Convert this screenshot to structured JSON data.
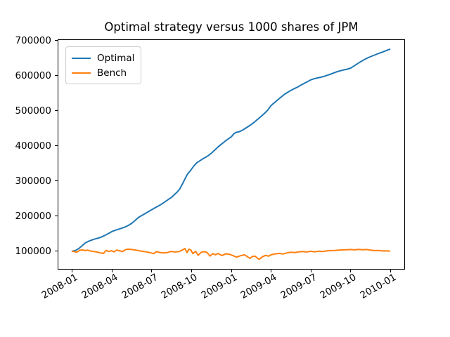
{
  "figure": {
    "title": "Optimal strategy versus 1000 shares of JPM",
    "background": "#ffffff",
    "text_color": "#000000"
  },
  "legend": {
    "position": "upper-left",
    "entries": [
      {
        "label": "Optimal",
        "color": "#1f77b4"
      },
      {
        "label": "Bench",
        "color": "#ff7f0e"
      }
    ]
  },
  "chart_data": {
    "type": "line",
    "title": "Optimal strategy versus 1000 shares of JPM",
    "xlabel": "",
    "ylabel": "",
    "grid": false,
    "legend_position": "upper-left",
    "x_unit": "months since 2008-01",
    "xlim": [
      -1.05,
      25.05
    ],
    "ylim": [
      49900,
      701400
    ],
    "xticks": [
      {
        "label": "2008-01",
        "value": 0
      },
      {
        "label": "2008-04",
        "value": 3
      },
      {
        "label": "2008-07",
        "value": 6
      },
      {
        "label": "2008-10",
        "value": 9
      },
      {
        "label": "2009-01",
        "value": 12
      },
      {
        "label": "2009-04",
        "value": 15
      },
      {
        "label": "2009-07",
        "value": 18
      },
      {
        "label": "2009-10",
        "value": 21
      },
      {
        "label": "2010-01",
        "value": 24
      }
    ],
    "yticks": [
      {
        "label": "100000",
        "value": 100000
      },
      {
        "label": "200000",
        "value": 200000
      },
      {
        "label": "300000",
        "value": 300000
      },
      {
        "label": "400000",
        "value": 400000
      },
      {
        "label": "500000",
        "value": 500000
      },
      {
        "label": "600000",
        "value": 600000
      },
      {
        "label": "700000",
        "value": 700000
      }
    ],
    "series": [
      {
        "name": "Optimal",
        "color": "#1f77b4",
        "points": [
          [
            0,
            100000
          ],
          [
            0.25,
            102500
          ],
          [
            0.5,
            108000
          ],
          [
            0.75,
            116000
          ],
          [
            1.0,
            124000
          ],
          [
            1.25,
            129000
          ],
          [
            1.5,
            132500
          ],
          [
            1.75,
            135500
          ],
          [
            2.0,
            138000
          ],
          [
            2.25,
            141500
          ],
          [
            2.5,
            146000
          ],
          [
            2.75,
            151000
          ],
          [
            3.0,
            156500
          ],
          [
            3.25,
            160000
          ],
          [
            3.5,
            163000
          ],
          [
            3.75,
            166000
          ],
          [
            4.0,
            169500
          ],
          [
            4.25,
            174000
          ],
          [
            4.5,
            180000
          ],
          [
            4.75,
            188000
          ],
          [
            5.0,
            196500
          ],
          [
            5.25,
            202000
          ],
          [
            5.5,
            207500
          ],
          [
            5.75,
            213000
          ],
          [
            6.0,
            218500
          ],
          [
            6.25,
            224000
          ],
          [
            6.5,
            229000
          ],
          [
            6.75,
            234500
          ],
          [
            7.0,
            241000
          ],
          [
            7.25,
            247500
          ],
          [
            7.5,
            254000
          ],
          [
            7.7,
            261000
          ],
          [
            7.9,
            268000
          ],
          [
            8.1,
            277000
          ],
          [
            8.3,
            291000
          ],
          [
            8.5,
            306000
          ],
          [
            8.7,
            320000
          ],
          [
            8.9,
            329000
          ],
          [
            9.0,
            334000
          ],
          [
            9.2,
            344000
          ],
          [
            9.4,
            352000
          ],
          [
            9.6,
            357000
          ],
          [
            9.8,
            362000
          ],
          [
            10.0,
            366500
          ],
          [
            10.25,
            372000
          ],
          [
            10.5,
            379500
          ],
          [
            10.75,
            388000
          ],
          [
            11.0,
            397000
          ],
          [
            11.25,
            405000
          ],
          [
            11.5,
            412500
          ],
          [
            11.75,
            419500
          ],
          [
            12.0,
            426000
          ],
          [
            12.2,
            435000
          ],
          [
            12.4,
            439000
          ],
          [
            12.6,
            440500
          ],
          [
            12.8,
            444000
          ],
          [
            13.0,
            448500
          ],
          [
            13.25,
            454500
          ],
          [
            13.5,
            461000
          ],
          [
            13.75,
            468000
          ],
          [
            14.0,
            476000
          ],
          [
            14.25,
            484000
          ],
          [
            14.5,
            492500
          ],
          [
            14.75,
            502000
          ],
          [
            15.0,
            515000
          ],
          [
            15.25,
            523000
          ],
          [
            15.5,
            531000
          ],
          [
            15.75,
            539000
          ],
          [
            16.0,
            546500
          ],
          [
            16.25,
            552500
          ],
          [
            16.5,
            558000
          ],
          [
            16.75,
            563000
          ],
          [
            17.0,
            567500
          ],
          [
            17.25,
            573000
          ],
          [
            17.5,
            578000
          ],
          [
            17.75,
            583000
          ],
          [
            18.0,
            588000
          ],
          [
            18.25,
            591000
          ],
          [
            18.5,
            593500
          ],
          [
            18.75,
            595500
          ],
          [
            19.0,
            598000
          ],
          [
            19.25,
            601000
          ],
          [
            19.5,
            604500
          ],
          [
            19.75,
            608000
          ],
          [
            20.0,
            611500
          ],
          [
            20.25,
            614000
          ],
          [
            20.5,
            616500
          ],
          [
            20.75,
            618500
          ],
          [
            21.0,
            621500
          ],
          [
            21.2,
            626000
          ],
          [
            21.4,
            631000
          ],
          [
            21.6,
            636000
          ],
          [
            21.8,
            640500
          ],
          [
            22.0,
            645000
          ],
          [
            22.2,
            649000
          ],
          [
            22.4,
            652500
          ],
          [
            22.6,
            655500
          ],
          [
            22.8,
            658500
          ],
          [
            23.0,
            661500
          ],
          [
            23.2,
            664500
          ],
          [
            23.4,
            667000
          ],
          [
            23.6,
            670000
          ],
          [
            23.8,
            673000
          ],
          [
            23.95,
            675000
          ]
        ]
      },
      {
        "name": "Bench",
        "color": "#ff7f0e",
        "points": [
          [
            0,
            100000
          ],
          [
            0.15,
            99000
          ],
          [
            0.35,
            97500
          ],
          [
            0.55,
            103000
          ],
          [
            0.75,
            104000
          ],
          [
            0.95,
            102000
          ],
          [
            1.15,
            103500
          ],
          [
            1.35,
            101000
          ],
          [
            1.6,
            99500
          ],
          [
            1.85,
            98000
          ],
          [
            2.1,
            95500
          ],
          [
            2.35,
            94000
          ],
          [
            2.55,
            102500
          ],
          [
            2.75,
            99500
          ],
          [
            2.95,
            101500
          ],
          [
            3.15,
            98500
          ],
          [
            3.35,
            103500
          ],
          [
            3.6,
            101000
          ],
          [
            3.8,
            99000
          ],
          [
            4.0,
            104500
          ],
          [
            4.2,
            106000
          ],
          [
            4.5,
            105000
          ],
          [
            4.8,
            103500
          ],
          [
            5.1,
            101000
          ],
          [
            5.4,
            99500
          ],
          [
            5.7,
            97500
          ],
          [
            5.95,
            95500
          ],
          [
            6.15,
            93500
          ],
          [
            6.35,
            99000
          ],
          [
            6.55,
            97000
          ],
          [
            6.85,
            95500
          ],
          [
            7.15,
            96500
          ],
          [
            7.45,
            99500
          ],
          [
            7.75,
            98000
          ],
          [
            8.05,
            99000
          ],
          [
            8.3,
            103500
          ],
          [
            8.5,
            108000
          ],
          [
            8.65,
            96500
          ],
          [
            8.8,
            106000
          ],
          [
            8.95,
            103500
          ],
          [
            9.1,
            93500
          ],
          [
            9.3,
            100000
          ],
          [
            9.5,
            88500
          ],
          [
            9.7,
            96500
          ],
          [
            9.9,
            99000
          ],
          [
            10.15,
            97000
          ],
          [
            10.4,
            86500
          ],
          [
            10.6,
            93500
          ],
          [
            10.8,
            90000
          ],
          [
            11.0,
            93500
          ],
          [
            11.3,
            88000
          ],
          [
            11.6,
            93000
          ],
          [
            11.9,
            91000
          ],
          [
            12.1,
            88000
          ],
          [
            12.4,
            83500
          ],
          [
            12.7,
            87500
          ],
          [
            13.0,
            90000
          ],
          [
            13.2,
            85000
          ],
          [
            13.4,
            80000
          ],
          [
            13.6,
            85500
          ],
          [
            13.8,
            86000
          ],
          [
            14.0,
            79500
          ],
          [
            14.1,
            77000
          ],
          [
            14.35,
            84500
          ],
          [
            14.6,
            88500
          ],
          [
            14.8,
            86000
          ],
          [
            15.0,
            90000
          ],
          [
            15.3,
            92500
          ],
          [
            15.6,
            94000
          ],
          [
            15.9,
            92500
          ],
          [
            16.2,
            95500
          ],
          [
            16.5,
            97500
          ],
          [
            16.8,
            96500
          ],
          [
            17.1,
            98500
          ],
          [
            17.4,
            99500
          ],
          [
            17.7,
            98000
          ],
          [
            18.0,
            100000
          ],
          [
            18.3,
            98500
          ],
          [
            18.6,
            100500
          ],
          [
            18.9,
            99500
          ],
          [
            19.2,
            101000
          ],
          [
            19.5,
            102000
          ],
          [
            19.8,
            102500
          ],
          [
            20.1,
            103500
          ],
          [
            20.4,
            104000
          ],
          [
            20.7,
            104500
          ],
          [
            21.0,
            105000
          ],
          [
            21.3,
            104000
          ],
          [
            21.6,
            105500
          ],
          [
            21.9,
            104500
          ],
          [
            22.2,
            105000
          ],
          [
            22.5,
            103500
          ],
          [
            22.8,
            102000
          ],
          [
            23.1,
            102500
          ],
          [
            23.4,
            101000
          ],
          [
            23.7,
            101500
          ],
          [
            23.95,
            100500
          ]
        ]
      }
    ]
  }
}
